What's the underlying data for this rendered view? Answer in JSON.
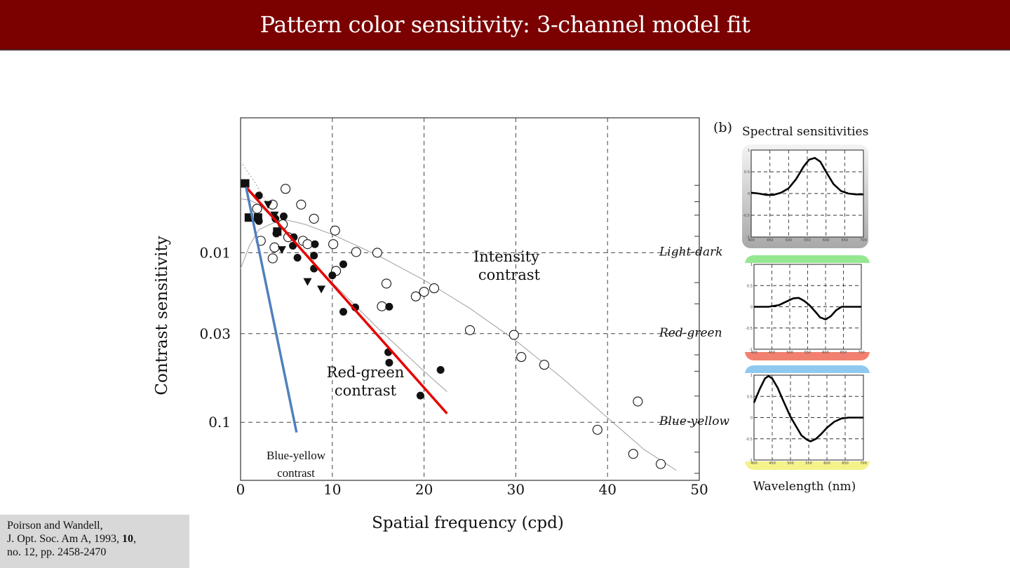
{
  "slide": {
    "title": "Pattern color sensitivity: 3-channel model fit",
    "accent_color": "#7b0000"
  },
  "citation": {
    "line1": "Poirson and Wandell,",
    "line2_prefix": "J. Opt. Soc. Am A, 1993, ",
    "line2_volume": "10",
    "line2_suffix": ",",
    "line3": "no. 12, pp. 2458-2470"
  },
  "chart_data": [
    {
      "type": "scatter",
      "xlabel": "Spatial frequency (cpd)",
      "ylabel": "Contrast sensitivity",
      "xlim": [
        0,
        50
      ],
      "x_ticks": [
        0,
        10,
        20,
        30,
        40,
        50
      ],
      "y_ticks": [
        {
          "value": 0.01,
          "label": "0.01"
        },
        {
          "value": 0.03,
          "label": "0.03"
        },
        {
          "value": 0.1,
          "label": "0.1"
        }
      ],
      "y_scale": "log",
      "y_inverted": true,
      "ylim": [
        0.0016,
        0.22
      ],
      "grid": "dashed",
      "annotations": {
        "intensity": [
          "Intensity",
          "contrast"
        ],
        "redgreen": [
          "Red-green",
          "contrast"
        ],
        "blueyellow": [
          "Blue-yellow",
          "contrast"
        ]
      },
      "series": [
        {
          "name": "Intensity contrast",
          "marker": "open-circle",
          "points": [
            [
              1.8,
              0.0055
            ],
            [
              2.2,
              0.0085
            ],
            [
              3.5,
              0.0052
            ],
            [
              3.7,
              0.0093
            ],
            [
              3.5,
              0.0108
            ],
            [
              4.9,
              0.0042
            ],
            [
              4.6,
              0.0068
            ],
            [
              5.2,
              0.0081
            ],
            [
              6.6,
              0.0052
            ],
            [
              6.8,
              0.0085
            ],
            [
              7.3,
              0.0089
            ],
            [
              8.0,
              0.0063
            ],
            [
              10.3,
              0.0074
            ],
            [
              10.1,
              0.0089
            ],
            [
              10.4,
              0.0128
            ],
            [
              12.6,
              0.0099
            ],
            [
              14.9,
              0.01
            ],
            [
              15.4,
              0.0207
            ],
            [
              15.9,
              0.0152
            ],
            [
              19.1,
              0.0181
            ],
            [
              20.0,
              0.017
            ],
            [
              21.1,
              0.0162
            ],
            [
              25.0,
              0.0286
            ],
            [
              29.8,
              0.0305
            ],
            [
              30.6,
              0.0412
            ],
            [
              33.1,
              0.0458
            ],
            [
              38.9,
              0.1107
            ],
            [
              43.3,
              0.0754
            ],
            [
              42.8,
              0.1536
            ],
            [
              45.8,
              0.1763
            ]
          ]
        },
        {
          "name": "Red-green contrast",
          "marker": "filled-circle",
          "points": [
            [
              2.0,
              0.0046
            ],
            [
              1.9,
              0.0062
            ],
            [
              2.0,
              0.0065
            ],
            [
              3.9,
              0.0077
            ],
            [
              3.8,
              0.0063
            ],
            [
              4.7,
              0.0061
            ],
            [
              5.8,
              0.0081
            ],
            [
              5.7,
              0.0091
            ],
            [
              6.2,
              0.0107
            ],
            [
              8.1,
              0.0089
            ],
            [
              8.0,
              0.0104
            ],
            [
              8.0,
              0.0124
            ],
            [
              10.0,
              0.0136
            ],
            [
              11.2,
              0.0117
            ],
            [
              11.2,
              0.0223
            ],
            [
              12.5,
              0.021
            ],
            [
              16.2,
              0.0208
            ],
            [
              16.1,
              0.0386
            ],
            [
              16.2,
              0.0445
            ],
            [
              21.8,
              0.0491
            ],
            [
              19.6,
              0.0696
            ]
          ]
        },
        {
          "name": "Blue-yellow contrast",
          "marker": "filled-square",
          "points": [
            [
              0.5,
              0.0039
            ],
            [
              0.9,
              0.0062
            ],
            [
              1.9,
              0.0062
            ],
            [
              4.0,
              0.0075
            ]
          ]
        },
        {
          "name": "Blue-yellow contrast (triangles)",
          "marker": "filled-triangle",
          "points": [
            [
              3.0,
              0.0052
            ],
            [
              3.7,
              0.006
            ],
            [
              4.5,
              0.0096
            ],
            [
              7.3,
              0.0148
            ],
            [
              8.8,
              0.0164
            ]
          ]
        },
        {
          "name": "Light-dark model",
          "style": "thin-gray-line",
          "points": [
            [
              0,
              0.0124
            ],
            [
              1,
              0.009
            ],
            [
              2,
              0.0073
            ],
            [
              3.5,
              0.0067
            ],
            [
              5,
              0.0064
            ],
            [
              7,
              0.0068
            ],
            [
              10,
              0.0078
            ],
            [
              15,
              0.0104
            ],
            [
              20,
              0.0145
            ],
            [
              25,
              0.0213
            ],
            [
              30,
              0.033
            ],
            [
              35,
              0.0545
            ],
            [
              40,
              0.094
            ],
            [
              44,
              0.145
            ],
            [
              47.5,
              0.192
            ]
          ]
        },
        {
          "name": "Red-green model",
          "style": "thin-gray-line",
          "points": [
            [
              0,
              0.0048
            ],
            [
              1,
              0.0049
            ],
            [
              2,
              0.0052
            ],
            [
              4,
              0.0066
            ],
            [
              6,
              0.0088
            ],
            [
              10,
              0.015
            ],
            [
              15,
              0.028
            ],
            [
              20,
              0.05
            ],
            [
              22.5,
              0.066
            ]
          ]
        },
        {
          "name": "Red-green fit",
          "color": "#e60000",
          "points": [
            [
              0.6,
              0.0041
            ],
            [
              22.5,
              0.0888
            ]
          ]
        },
        {
          "name": "Blue-yellow fit",
          "color": "#4f81bd",
          "points": [
            [
              0.6,
              0.0041
            ],
            [
              6.1,
              0.1148
            ]
          ]
        },
        {
          "name": "Gray dotted curve",
          "style": "dotted",
          "points": [
            [
              0,
              0.0029
            ],
            [
              1.5,
              0.0038
            ],
            [
              3,
              0.0052
            ],
            [
              4.5,
              0.0068
            ],
            [
              6,
              0.0088
            ],
            [
              8,
              0.0112
            ]
          ]
        }
      ]
    },
    {
      "type": "line",
      "panel_label": "(b)",
      "title": "Spectral sensitivities",
      "xlabel": "Wavelength (nm)",
      "x_ticks": [
        400,
        450,
        500,
        550,
        600,
        650,
        700
      ],
      "panels": [
        {
          "name": "Light-dark",
          "band_color": "#c8c8c8",
          "y_ticks": [
            "1",
            "0.5",
            "0",
            "-0.5",
            "-1"
          ],
          "points": [
            [
              400,
              0.02
            ],
            [
              420,
              0.0
            ],
            [
              440,
              -0.03
            ],
            [
              460,
              -0.03
            ],
            [
              480,
              0.02
            ],
            [
              500,
              0.12
            ],
            [
              520,
              0.33
            ],
            [
              540,
              0.62
            ],
            [
              555,
              0.78
            ],
            [
              570,
              0.82
            ],
            [
              585,
              0.73
            ],
            [
              600,
              0.5
            ],
            [
              620,
              0.22
            ],
            [
              640,
              0.06
            ],
            [
              660,
              0.0
            ],
            [
              680,
              -0.02
            ],
            [
              700,
              -0.02
            ]
          ]
        },
        {
          "name": "Red-green",
          "band_color": "#f28070",
          "band_top_color": "#96e890",
          "y_ticks": [
            "1",
            "0.5",
            "0",
            "-0.5",
            "-1"
          ],
          "points": [
            [
              400,
              0.0
            ],
            [
              440,
              0.0
            ],
            [
              470,
              0.04
            ],
            [
              490,
              0.12
            ],
            [
              510,
              0.2
            ],
            [
              525,
              0.21
            ],
            [
              540,
              0.14
            ],
            [
              555,
              0.04
            ],
            [
              570,
              -0.1
            ],
            [
              585,
              -0.25
            ],
            [
              600,
              -0.3
            ],
            [
              615,
              -0.22
            ],
            [
              630,
              -0.08
            ],
            [
              645,
              0.0
            ],
            [
              660,
              0.0
            ],
            [
              700,
              0.0
            ]
          ]
        },
        {
          "name": "Blue-yellow",
          "band_color": "#f5f28a",
          "band_top_color": "#90c9f0",
          "y_ticks": [
            "1",
            "0.5",
            "0",
            "-0.5",
            "-1"
          ],
          "points": [
            [
              400,
              0.35
            ],
            [
              415,
              0.66
            ],
            [
              430,
              0.92
            ],
            [
              440,
              0.98
            ],
            [
              450,
              0.92
            ],
            [
              465,
              0.7
            ],
            [
              480,
              0.4
            ],
            [
              500,
              0.02
            ],
            [
              515,
              -0.2
            ],
            [
              530,
              -0.42
            ],
            [
              545,
              -0.52
            ],
            [
              555,
              -0.56
            ],
            [
              570,
              -0.5
            ],
            [
              585,
              -0.38
            ],
            [
              600,
              -0.24
            ],
            [
              620,
              -0.1
            ],
            [
              640,
              -0.02
            ],
            [
              660,
              0.0
            ],
            [
              680,
              0.0
            ],
            [
              700,
              0.0
            ]
          ]
        }
      ]
    }
  ]
}
